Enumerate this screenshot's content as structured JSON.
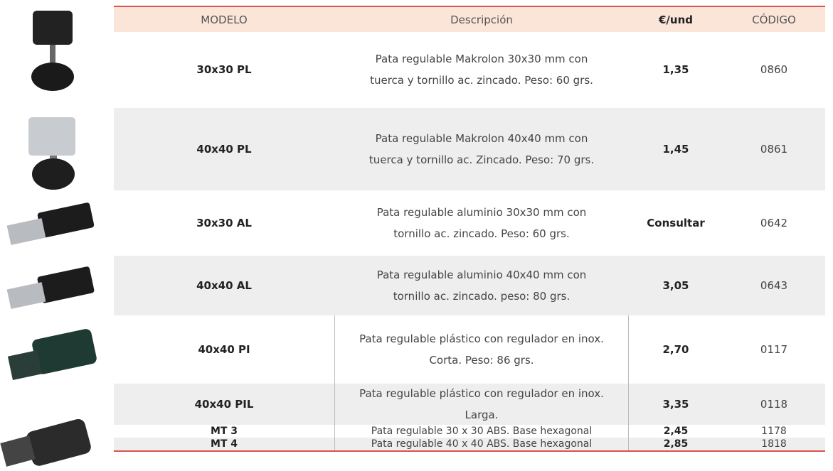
{
  "table": {
    "header": [
      "MODELO",
      "Descripción",
      "€/und",
      "CÓDIGO"
    ],
    "rows": [
      {
        "model": "30x30 PL",
        "description": [
          "Pata regulable Makrolon 30x30 mm con",
          "tuerca y tornillo ac. zincado. Peso: 60 grs."
        ],
        "price": "1,35",
        "code": "0860"
      },
      {
        "model": "40x40 PL",
        "description": [
          "Pata regulable Makrolon 40x40 mm con",
          "tuerca y tornillo ac. Zincado. Peso: 70 grs."
        ],
        "price": "1,45",
        "code": "0861"
      },
      {
        "model": "30x30 AL",
        "description": [
          "Pata regulable aluminio 30x30 mm con",
          "tornillo ac. zincado. Peso: 60 grs."
        ],
        "price": "Consultar",
        "code": "0642"
      },
      {
        "model": "40x40 AL",
        "description": [
          "Pata regulable aluminio 40x40 mm con",
          "tornillo ac. zincado. peso: 80 grs."
        ],
        "price": "3,05",
        "code": "0643"
      },
      {
        "model": "40x40 PI",
        "description": [
          "Pata regulable plástico con regulador en  inox.",
          "Corta. Peso: 86 grs."
        ],
        "price": "2,70",
        "code": "0117"
      },
      {
        "model": "40x40 PIL",
        "description": [
          "Pata regulable plástico con regulador en  inox.",
          "Larga."
        ],
        "price": "3,35",
        "code": "0118"
      },
      {
        "model": "MT 3",
        "description": [
          "Pata regulable 30 x 30 ABS. Base hexagonal"
        ],
        "price": "2,45",
        "code": "1178"
      },
      {
        "model": "MT 4",
        "description": [
          "Pata regulable 40 x 40 ABS. Base hexagonal"
        ],
        "price": "2,85",
        "code": "1818"
      }
    ]
  }
}
